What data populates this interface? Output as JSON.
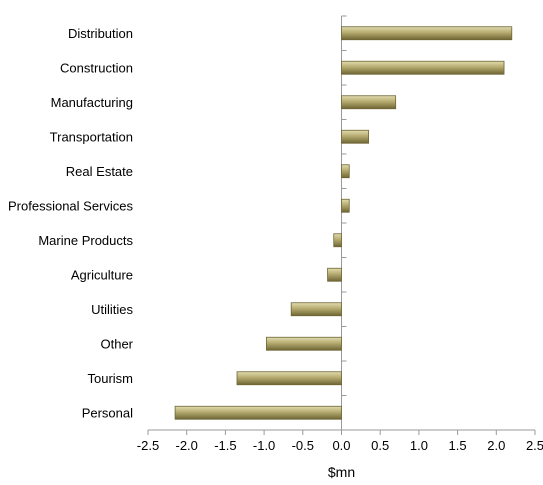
{
  "chart_data": {
    "type": "bar",
    "orientation": "horizontal",
    "categories": [
      "Distribution",
      "Construction",
      "Manufacturing",
      "Transportation",
      "Real Estate",
      "Professional Services",
      "Marine Products",
      "Agriculture",
      "Utilities",
      "Other",
      "Tourism",
      "Personal"
    ],
    "values": [
      2.2,
      2.1,
      0.7,
      0.35,
      0.1,
      0.1,
      -0.1,
      -0.18,
      -0.65,
      -0.97,
      -1.35,
      -2.15
    ],
    "xlabel": "$mn",
    "ylabel": "",
    "title": "",
    "xlim": [
      -2.5,
      2.5
    ],
    "xticks": [
      "-2.5",
      "-2.0",
      "-1.5",
      "-1.0",
      "-0.5",
      "0.0",
      "0.5",
      "1.0",
      "1.5",
      "2.0",
      "2.5"
    ],
    "grid": false,
    "legend": "none",
    "colors": {
      "bar": "#b5ab6f",
      "bar_light": "#e2dcaf",
      "bar_dark": "#6e6535",
      "axis": "#9a9a9a"
    }
  }
}
